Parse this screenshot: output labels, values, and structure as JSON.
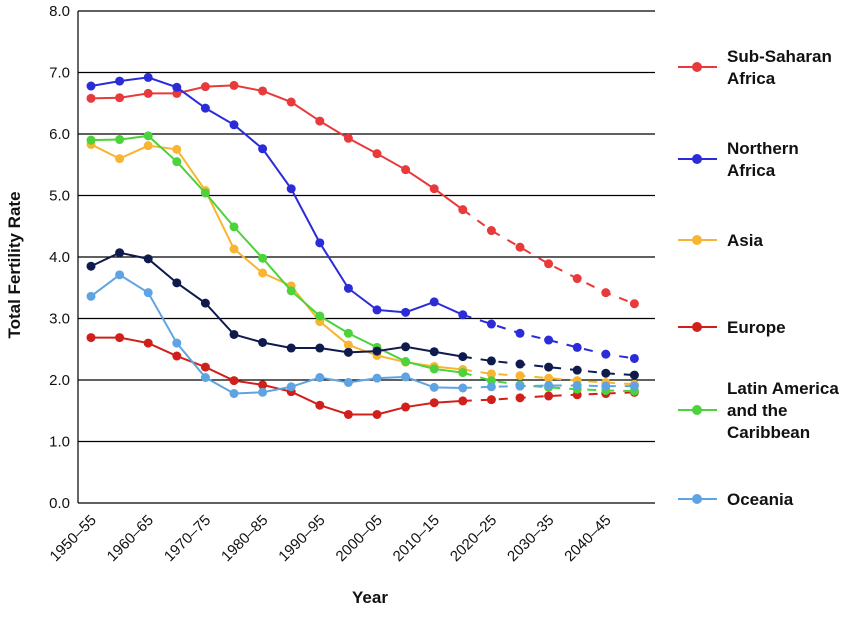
{
  "chart_data": {
    "type": "line",
    "xlabel": "Year",
    "ylabel": "Total Fertility Rate",
    "ylim": [
      0,
      8
    ],
    "yticks": [
      "0.0",
      "1.0",
      "2.0",
      "3.0",
      "4.0",
      "5.0",
      "6.0",
      "7.0",
      "8.0"
    ],
    "categories": [
      "1950–55",
      "1955–60",
      "1960–65",
      "1965–70",
      "1970–75",
      "1975–80",
      "1980–85",
      "1985–90",
      "1990–95",
      "1995–00",
      "2000–05",
      "2005–10",
      "2010–15",
      "2015–20",
      "2020–25",
      "2025–30",
      "2030–35",
      "2035–40",
      "2040–45",
      "2045–50"
    ],
    "x_tick_labels": [
      "1950–55",
      "1960–65",
      "1970–75",
      "1980–85",
      "1990–95",
      "2000–05",
      "2010–15",
      "2020–25",
      "2030–35",
      "2040–45"
    ],
    "grid": "horizontal",
    "legend_position": "right",
    "projection_note_style": "dashed",
    "series": [
      {
        "name": "Sub-Saharan Africa",
        "color": "#e8393b",
        "observed": [
          6.58,
          6.59,
          6.66,
          6.66,
          6.77,
          6.79,
          6.7,
          6.52,
          6.21,
          5.93,
          5.68,
          5.42,
          5.11,
          4.77
        ],
        "projected": [
          4.77,
          4.43,
          4.16,
          3.89,
          3.65,
          3.42,
          3.24
        ]
      },
      {
        "name": "Northern Africa",
        "color": "#2b2bd8",
        "observed": [
          6.78,
          6.86,
          6.92,
          6.76,
          6.42,
          6.15,
          5.76,
          5.11,
          4.23,
          3.49,
          3.14,
          3.1,
          3.27,
          3.06
        ],
        "projected": [
          3.06,
          2.91,
          2.76,
          2.65,
          2.53,
          2.42,
          2.35
        ]
      },
      {
        "name": "Asia",
        "color": "#f7b531",
        "observed": [
          5.83,
          5.6,
          5.81,
          5.75,
          5.08,
          4.13,
          3.74,
          3.53,
          2.95,
          2.57,
          2.4,
          2.29,
          2.22,
          2.17
        ],
        "projected": [
          2.17,
          2.1,
          2.07,
          2.03,
          1.99,
          1.96,
          1.93
        ]
      },
      {
        "name": "Europe",
        "color": "#d1201b",
        "observed": [
          2.69,
          2.69,
          2.6,
          2.39,
          2.21,
          1.99,
          1.92,
          1.81,
          1.59,
          1.44,
          1.44,
          1.56,
          1.63,
          1.66
        ],
        "projected": [
          1.66,
          1.68,
          1.71,
          1.74,
          1.76,
          1.78,
          1.8
        ]
      },
      {
        "name": "Latin America and the Caribbean",
        "color": "#4cd23a",
        "observed": [
          5.9,
          5.91,
          5.97,
          5.55,
          5.04,
          4.49,
          3.98,
          3.45,
          3.04,
          2.76,
          2.53,
          2.3,
          2.18,
          2.12
        ],
        "projected": [
          2.12,
          1.99,
          1.92,
          1.88,
          1.85,
          1.83,
          1.82
        ]
      },
      {
        "name": "Oceania",
        "color": "#5fa4e2",
        "observed": [
          3.36,
          3.71,
          3.42,
          2.6,
          2.04,
          1.78,
          1.8,
          1.89,
          2.04,
          1.96,
          2.03,
          2.05,
          1.88,
          1.87
        ],
        "projected": [
          1.87,
          1.89,
          1.9,
          1.91,
          1.91,
          1.9,
          1.9
        ]
      },
      {
        "name": "",
        "color": "#0f1a4d",
        "observed": [
          3.85,
          4.07,
          3.97,
          3.58,
          3.25,
          2.74,
          2.61,
          2.52,
          2.52,
          2.45,
          2.47,
          2.54,
          2.46,
          2.38
        ],
        "projected": [
          2.38,
          2.31,
          2.26,
          2.21,
          2.16,
          2.11,
          2.08
        ]
      }
    ],
    "legend": [
      {
        "lines": [
          "Sub-Saharan",
          "Africa"
        ],
        "color": "#e8393b"
      },
      {
        "lines": [
          "Northern",
          "Africa"
        ],
        "color": "#2b2bd8"
      },
      {
        "lines": [
          "Asia"
        ],
        "color": "#f7b531"
      },
      {
        "lines": [
          "Europe"
        ],
        "color": "#d1201b"
      },
      {
        "lines": [
          "Latin America",
          "and the",
          "Caribbean"
        ],
        "color": "#4cd23a"
      },
      {
        "lines": [
          "Oceania"
        ],
        "color": "#5fa4e2"
      }
    ]
  }
}
